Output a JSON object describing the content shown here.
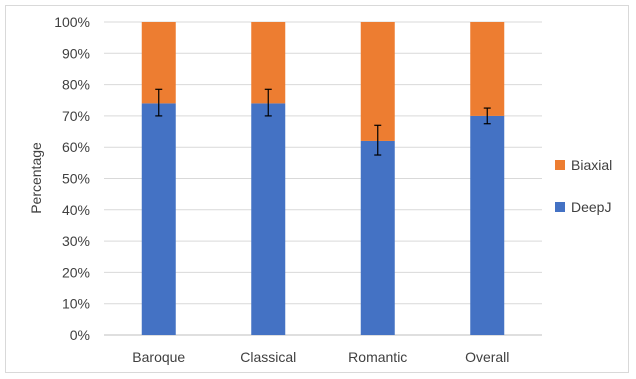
{
  "chart_data": {
    "type": "bar",
    "stacked": true,
    "categories": [
      "Baroque",
      "Classical",
      "Romantic",
      "Overall"
    ],
    "series": [
      {
        "name": "DeepJ",
        "color": "#4472C4",
        "values": [
          74,
          74,
          62,
          70
        ],
        "error": [
          [
            70,
            78.5
          ],
          [
            70,
            78.5
          ],
          [
            57.5,
            67
          ],
          [
            67.5,
            72.5
          ]
        ]
      },
      {
        "name": "Biaxial",
        "color": "#ED7D31",
        "values": [
          26,
          26,
          38,
          30
        ]
      }
    ],
    "ylabel": "Percentage",
    "ylim": [
      0,
      100
    ],
    "yticks": [
      "0%",
      "10%",
      "20%",
      "30%",
      "40%",
      "50%",
      "60%",
      "70%",
      "80%",
      "90%",
      "100%"
    ],
    "grid": true,
    "legend_position": "right",
    "legend_order": [
      "Biaxial",
      "DeepJ"
    ]
  }
}
